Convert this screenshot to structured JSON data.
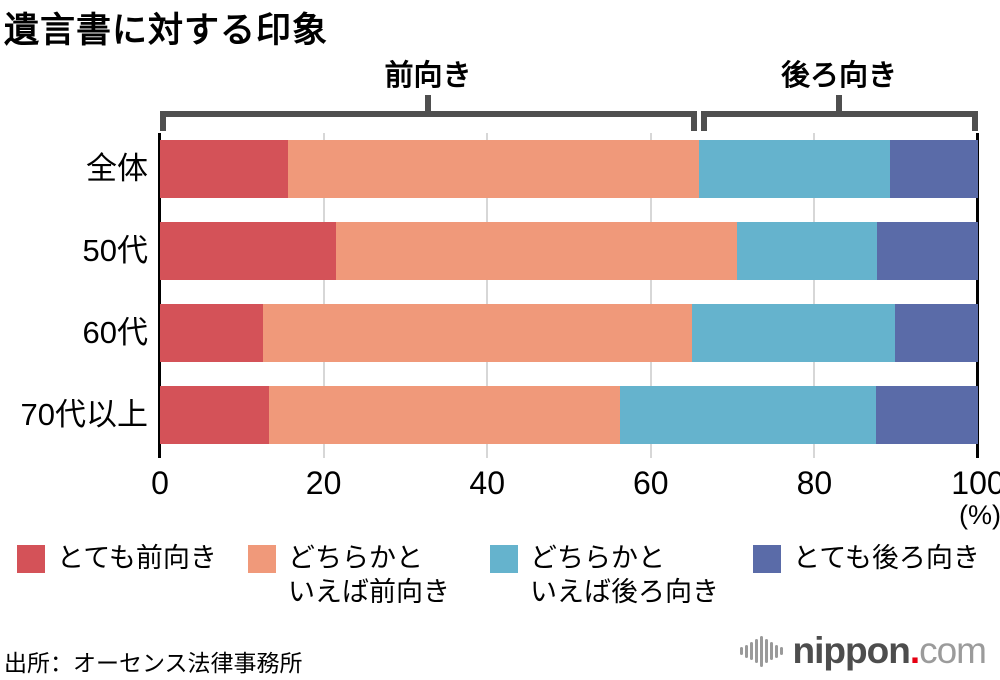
{
  "title": "遺言書に対する印象",
  "brackets": {
    "positive": "前向き",
    "negative": "後ろ向き"
  },
  "chart_data": {
    "type": "bar",
    "orientation": "horizontal",
    "stacked": true,
    "categories": [
      "全体",
      "50代",
      "60代",
      "70代以上"
    ],
    "series": [
      {
        "name": "とても前向き",
        "color": "#d45258",
        "values": [
          15.7,
          21.5,
          12.6,
          13.3
        ]
      },
      {
        "name": "どちらかといえば前向き",
        "color": "#f0997a",
        "values": [
          50.2,
          49.1,
          52.4,
          42.9
        ]
      },
      {
        "name": "どちらかといえば後ろ向き",
        "color": "#65b3cd",
        "values": [
          23.3,
          17.1,
          24.9,
          31.3
        ]
      },
      {
        "name": "とても後ろ向き",
        "color": "#5a6ba8",
        "values": [
          10.8,
          12.3,
          10.1,
          12.5
        ]
      }
    ],
    "xlim": [
      0,
      100
    ],
    "x_ticks": [
      0,
      20,
      40,
      60,
      80,
      100
    ],
    "x_unit": "(%)",
    "grid": true,
    "legend_position": "bottom",
    "group_brackets": [
      {
        "label": "前向き",
        "span": [
          0,
          66
        ]
      },
      {
        "label": "後ろ向き",
        "span": [
          66,
          100
        ]
      }
    ]
  },
  "axis": {
    "unit": "(%)"
  },
  "legend": {
    "items": [
      {
        "line1": "とても前向き",
        "line2": ""
      },
      {
        "line1": "どちらかと",
        "line2": "いえば前向き"
      },
      {
        "line1": "どちらかと",
        "line2": "いえば後ろ向き"
      },
      {
        "line1": "とても後ろ向き",
        "line2": ""
      }
    ]
  },
  "source": "出所：オーセンス法律事務所",
  "logo": {
    "wave_icon": "sound-wave-icon",
    "name": "nippon",
    "dot": ".",
    "tld": "com"
  },
  "colors": {
    "very_positive": "#d45258",
    "somewhat_positive": "#f0997a",
    "somewhat_negative": "#65b3cd",
    "very_negative": "#5a6ba8",
    "bracket": "#4f4f4f",
    "gridline": "#d7d7d7",
    "axis": "#000000",
    "logo_dark": "#4d4d4d",
    "logo_light": "#9b9b9b",
    "logo_dot": "#e60012"
  }
}
